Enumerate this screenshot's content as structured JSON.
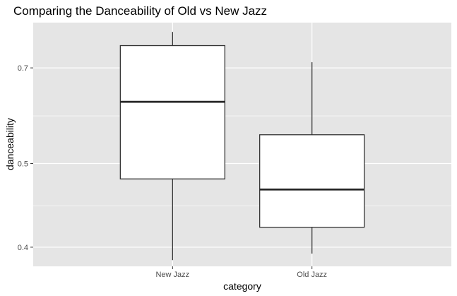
{
  "chart_data": {
    "type": "boxplot",
    "title": "Comparing the Danceability of Old vs New Jazz",
    "xlabel": "category",
    "ylabel": "danceability",
    "y_scale": "reciprocal",
    "ylim": [
      0.3825,
      0.8636
    ],
    "yticks": [
      0.4,
      0.5,
      0.7
    ],
    "y_minor_ticks": [
      0.444,
      0.583,
      0.875
    ],
    "grid": true,
    "categories": [
      "New Jazz",
      "Old Jazz"
    ],
    "boxes": [
      {
        "category": "New Jazz",
        "whisker_low": 0.388,
        "q1": 0.478,
        "median": 0.613,
        "q3": 0.772,
        "whisker_high": 0.824
      },
      {
        "category": "Old Jazz",
        "whisker_low": 0.394,
        "q1": 0.42,
        "median": 0.464,
        "q3": 0.547,
        "whisker_high": 0.717
      }
    ],
    "colors": {
      "panel": "#e5e5e5",
      "grid": "#ffffff",
      "box_fill": "#ffffff",
      "box_stroke": "#333333",
      "median": "#262626"
    }
  }
}
